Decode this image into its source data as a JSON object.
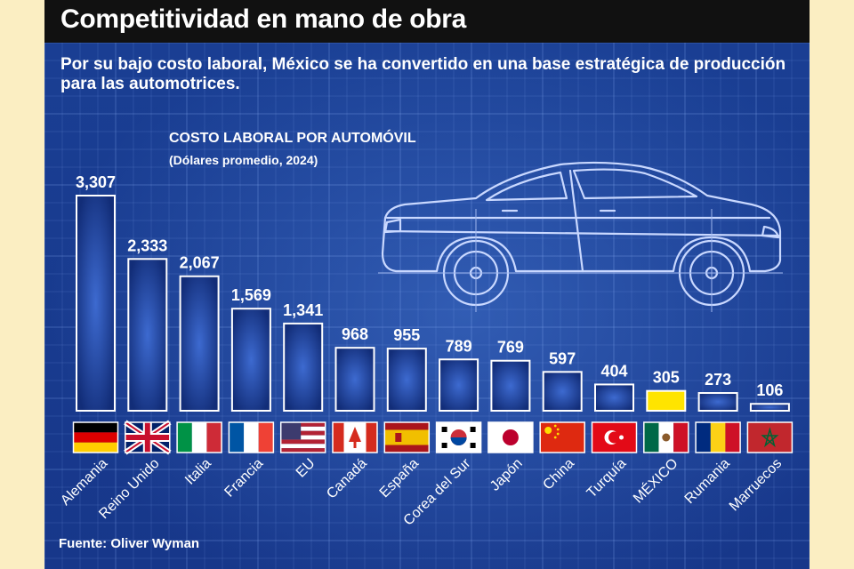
{
  "header": {
    "title": "Competitividad en mano de obra",
    "subtitle": "Por su bajo costo laboral, México se ha convertido en una base estratégica de producción para las automotrices."
  },
  "source": "Fuente: Oliver Wyman",
  "colors": {
    "background": "#1a3f94",
    "bar_fill": "#1d3b8e",
    "bar_stroke": "#ffffff",
    "highlight_bar": "#ffe400",
    "title_bar": "#111111"
  },
  "chart_data": {
    "type": "bar",
    "title": "COSTO LABORAL POR AUTOMÓVIL",
    "subtitle": "(Dólares promedio, 2024)",
    "categories": [
      "Alemania",
      "Reino Unido",
      "Italia",
      "Francia",
      "EU",
      "Canadá",
      "España",
      "Corea del Sur",
      "Japón",
      "China",
      "Turquía",
      "MÉXICO",
      "Rumania",
      "Marruecos"
    ],
    "values": [
      3307,
      2333,
      2067,
      1569,
      1341,
      968,
      955,
      789,
      769,
      597,
      404,
      305,
      273,
      106
    ],
    "value_labels": [
      "3,307",
      "2,333",
      "2,067",
      "1,569",
      "1,341",
      "968",
      "955",
      "789",
      "769",
      "597",
      "404",
      "305",
      "273",
      "106"
    ],
    "highlight": "MÉXICO",
    "flags": [
      "germany-flag",
      "uk-flag",
      "italy-flag",
      "france-flag",
      "usa-flag",
      "canada-flag",
      "spain-flag",
      "south-korea-flag",
      "japan-flag",
      "china-flag",
      "turkey-flag",
      "mexico-flag",
      "romania-flag",
      "morocco-flag"
    ],
    "ylim": [
      0,
      3307
    ],
    "grid": true,
    "legend": "none"
  }
}
